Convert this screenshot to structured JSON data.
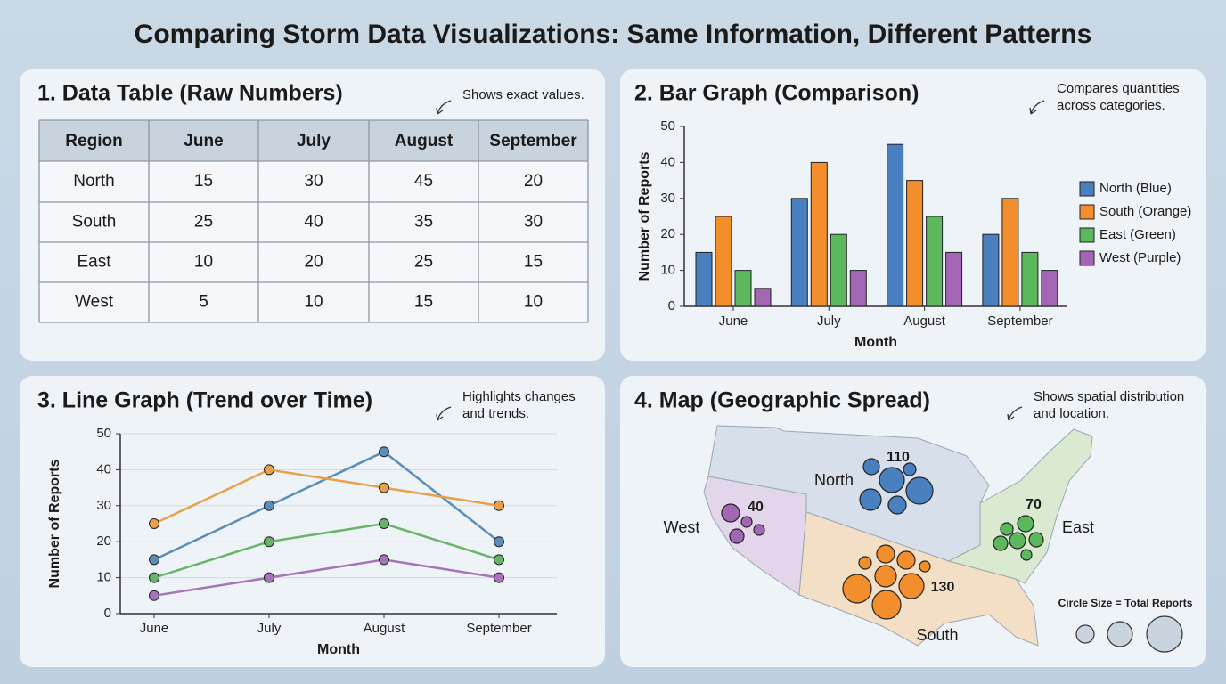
{
  "title": "Comparing Storm Data Visualizations: Same Information, Different Patterns",
  "table": {
    "title": "1. Data Table (Raw Numbers)",
    "note": "Shows exact values.",
    "header": [
      "Region",
      "June",
      "July",
      "August",
      "September"
    ],
    "rows": [
      [
        "North",
        15,
        30,
        45,
        20
      ],
      [
        "South",
        25,
        40,
        35,
        30
      ],
      [
        "East",
        10,
        20,
        25,
        15
      ],
      [
        "West",
        5,
        10,
        15,
        10
      ]
    ]
  },
  "chart_data": [
    {
      "type": "bar",
      "title": "2. Bar Graph (Comparison)",
      "note": [
        "Compares quantities",
        "across categories."
      ],
      "categories": [
        "June",
        "July",
        "August",
        "September"
      ],
      "series": [
        {
          "name": "North (Blue)",
          "color": "#4a7fc0",
          "values": [
            15,
            30,
            45,
            20
          ]
        },
        {
          "name": "South (Orange)",
          "color": "#f28e2b",
          "values": [
            25,
            40,
            35,
            30
          ]
        },
        {
          "name": "East (Green)",
          "color": "#5cb85c",
          "values": [
            10,
            20,
            25,
            15
          ]
        },
        {
          "name": "West (Purple)",
          "color": "#a266b5",
          "values": [
            5,
            10,
            15,
            10
          ]
        }
      ],
      "ylim": [
        0,
        50
      ],
      "yticks": [
        0,
        10,
        20,
        30,
        40,
        50
      ],
      "x_label": "Month",
      "y_label": "Number of Reports",
      "legend": "right"
    },
    {
      "type": "line",
      "title": "3. Line Graph (Trend over Time)",
      "note": [
        "Highlights changes",
        "and trends."
      ],
      "categories": [
        "June",
        "July",
        "August",
        "September"
      ],
      "series": [
        {
          "color": "#5a8db8",
          "values": [
            15,
            30,
            45,
            20
          ]
        },
        {
          "color": "#e9a04a",
          "values": [
            25,
            40,
            35,
            30
          ]
        },
        {
          "color": "#6ab46a",
          "values": [
            10,
            20,
            25,
            15
          ]
        },
        {
          "color": "#a474b6",
          "values": [
            5,
            10,
            15,
            10
          ]
        }
      ],
      "ylim": [
        0,
        50
      ],
      "yticks": [
        0,
        10,
        20,
        30,
        40,
        50
      ],
      "x_label": "Month",
      "y_label": "Number of Reports",
      "grid": true
    }
  ],
  "map": {
    "title": "4. Map (Geographic Spread)",
    "note": [
      "Shows spatial distribution",
      "and location."
    ],
    "regions": [
      {
        "name": "North",
        "total": 110
      },
      {
        "name": "South",
        "total": 130
      },
      {
        "name": "East",
        "total": 70
      },
      {
        "name": "West",
        "total": 40
      }
    ],
    "legend_title": "Circle Size = Total Reports"
  }
}
